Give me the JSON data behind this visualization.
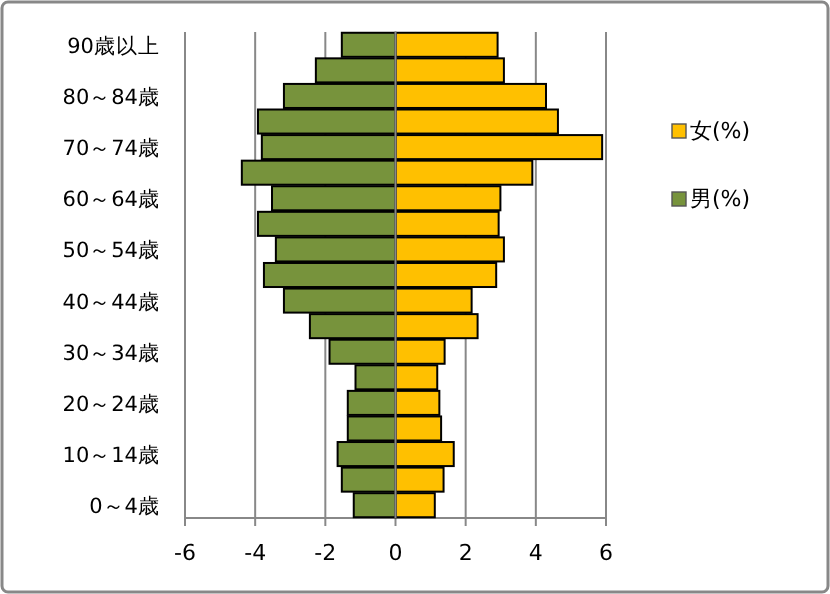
{
  "chart_data": {
    "type": "bar",
    "orientation": "horizontal",
    "stacked": true,
    "categories": [
      "90歳以上",
      null,
      "80～84歳",
      null,
      "70～74歳",
      null,
      "60～64歳",
      null,
      "50～54歳",
      null,
      "40～44歳",
      null,
      "30～34歳",
      null,
      "20～24歳",
      null,
      "10～14歳",
      null,
      "0～4歳"
    ],
    "series": [
      {
        "name": "女(%)",
        "color": "#ffc000",
        "values": [
          2.91,
          3.09,
          4.29,
          4.63,
          5.89,
          3.9,
          2.99,
          2.94,
          3.09,
          2.87,
          2.17,
          2.34,
          1.4,
          1.19,
          1.25,
          1.3,
          1.66,
          1.37,
          1.12
        ]
      },
      {
        "name": "男(%)",
        "color": "#77933c",
        "values": [
          -1.53,
          -2.27,
          -3.18,
          -3.92,
          -3.81,
          -4.38,
          -3.52,
          -3.92,
          -3.41,
          -3.75,
          -3.18,
          -2.44,
          -1.88,
          -1.14,
          -1.36,
          -1.36,
          -1.65,
          -1.53,
          -1.19
        ]
      }
    ],
    "xlim": [
      -6,
      6
    ],
    "xticks": [
      -6,
      -4,
      -2,
      0,
      2,
      4,
      6
    ],
    "grid": "x",
    "legend": "right"
  }
}
